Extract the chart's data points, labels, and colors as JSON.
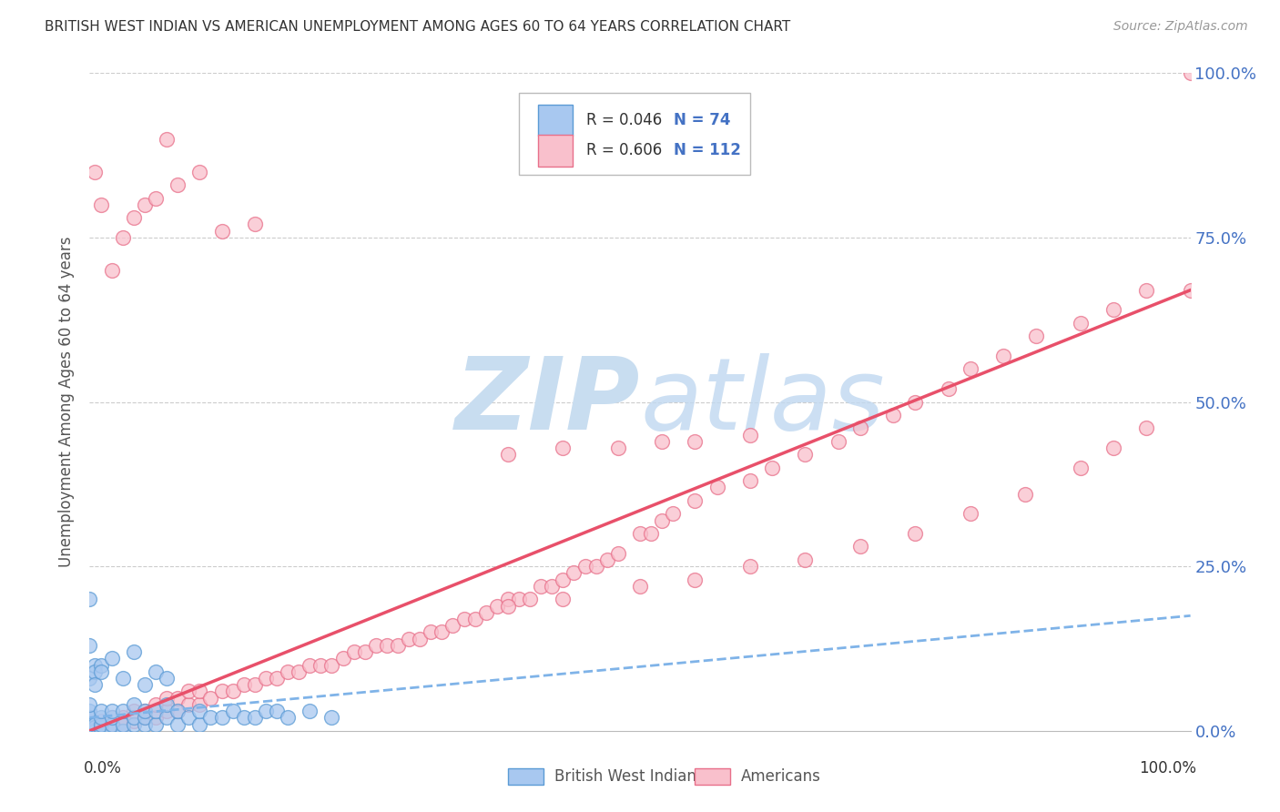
{
  "title": "BRITISH WEST INDIAN VS AMERICAN UNEMPLOYMENT AMONG AGES 60 TO 64 YEARS CORRELATION CHART",
  "source": "Source: ZipAtlas.com",
  "ylabel": "Unemployment Among Ages 60 to 64 years",
  "ylabel_right_ticks": [
    "0.0%",
    "25.0%",
    "50.0%",
    "75.0%",
    "100.0%"
  ],
  "ylabel_right_vals": [
    0.0,
    0.25,
    0.5,
    0.75,
    1.0
  ],
  "legend_label1": "British West Indians",
  "legend_label2": "Americans",
  "legend_R1": "R = 0.046",
  "legend_N1": "N = 74",
  "legend_R2": "R = 0.606",
  "legend_N2": "N = 112",
  "color_blue_fill": "#A8C8F0",
  "color_blue_edge": "#5B9BD5",
  "color_pink_fill": "#F9C0CC",
  "color_pink_edge": "#E8708A",
  "color_trendline_blue": "#7FB3E8",
  "color_trendline_pink": "#E8506A",
  "color_title": "#333333",
  "color_source": "#999999",
  "color_right_axis": "#4472C4",
  "color_grid": "#CCCCCC",
  "watermark_color": "#C8DDF0",
  "background_color": "#FFFFFF",
  "xlim": [
    0.0,
    1.0
  ],
  "ylim": [
    0.0,
    1.0
  ],
  "trendline_pink_x0": 0.0,
  "trendline_pink_y0": 0.0,
  "trendline_pink_x1": 1.0,
  "trendline_pink_y1": 0.67,
  "trendline_blue_x0": 0.0,
  "trendline_blue_y0": 0.02,
  "trendline_blue_x1": 1.0,
  "trendline_blue_y1": 0.175,
  "amer_x": [
    0.005,
    0.01,
    0.01,
    0.02,
    0.02,
    0.03,
    0.03,
    0.04,
    0.04,
    0.05,
    0.05,
    0.06,
    0.06,
    0.07,
    0.07,
    0.08,
    0.08,
    0.09,
    0.09,
    0.1,
    0.1,
    0.11,
    0.12,
    0.13,
    0.14,
    0.15,
    0.16,
    0.17,
    0.18,
    0.19,
    0.2,
    0.21,
    0.22,
    0.23,
    0.24,
    0.25,
    0.26,
    0.27,
    0.28,
    0.29,
    0.3,
    0.31,
    0.32,
    0.33,
    0.34,
    0.35,
    0.36,
    0.37,
    0.38,
    0.39,
    0.4,
    0.41,
    0.42,
    0.43,
    0.44,
    0.45,
    0.46,
    0.47,
    0.48,
    0.5,
    0.51,
    0.52,
    0.53,
    0.55,
    0.57,
    0.6,
    0.62,
    0.65,
    0.68,
    0.7,
    0.73,
    0.75,
    0.78,
    0.8,
    0.83,
    0.86,
    0.9,
    0.93,
    0.96,
    1.0,
    0.38,
    0.43,
    0.48,
    0.52,
    0.55,
    0.6,
    0.38,
    0.43,
    0.5,
    0.55,
    0.6,
    0.65,
    0.7,
    0.75,
    0.8,
    0.85,
    0.9,
    0.93,
    0.96,
    1.0,
    0.005,
    0.01,
    0.02,
    0.03,
    0.04,
    0.05,
    0.06,
    0.07,
    0.08,
    0.1,
    0.12,
    0.15
  ],
  "amer_y": [
    0.005,
    0.008,
    0.015,
    0.01,
    0.02,
    0.01,
    0.02,
    0.015,
    0.03,
    0.02,
    0.03,
    0.02,
    0.04,
    0.03,
    0.05,
    0.03,
    0.05,
    0.04,
    0.06,
    0.04,
    0.06,
    0.05,
    0.06,
    0.06,
    0.07,
    0.07,
    0.08,
    0.08,
    0.09,
    0.09,
    0.1,
    0.1,
    0.1,
    0.11,
    0.12,
    0.12,
    0.13,
    0.13,
    0.13,
    0.14,
    0.14,
    0.15,
    0.15,
    0.16,
    0.17,
    0.17,
    0.18,
    0.19,
    0.2,
    0.2,
    0.2,
    0.22,
    0.22,
    0.23,
    0.24,
    0.25,
    0.25,
    0.26,
    0.27,
    0.3,
    0.3,
    0.32,
    0.33,
    0.35,
    0.37,
    0.38,
    0.4,
    0.42,
    0.44,
    0.46,
    0.48,
    0.5,
    0.52,
    0.55,
    0.57,
    0.6,
    0.62,
    0.64,
    0.67,
    0.67,
    0.42,
    0.43,
    0.43,
    0.44,
    0.44,
    0.45,
    0.19,
    0.2,
    0.22,
    0.23,
    0.25,
    0.26,
    0.28,
    0.3,
    0.33,
    0.36,
    0.4,
    0.43,
    0.46,
    1.0,
    0.85,
    0.8,
    0.7,
    0.75,
    0.78,
    0.8,
    0.81,
    0.9,
    0.83,
    0.85,
    0.76,
    0.77
  ],
  "bwi_x": [
    0.0,
    0.0,
    0.0,
    0.0,
    0.0,
    0.0,
    0.0,
    0.0,
    0.0,
    0.0,
    0.0,
    0.0,
    0.0,
    0.0,
    0.0,
    0.0,
    0.0,
    0.0,
    0.0,
    0.0,
    0.005,
    0.005,
    0.005,
    0.01,
    0.01,
    0.01,
    0.01,
    0.01,
    0.02,
    0.02,
    0.02,
    0.02,
    0.03,
    0.03,
    0.03,
    0.04,
    0.04,
    0.04,
    0.05,
    0.05,
    0.05,
    0.06,
    0.06,
    0.07,
    0.07,
    0.08,
    0.08,
    0.09,
    0.1,
    0.1,
    0.11,
    0.12,
    0.13,
    0.14,
    0.15,
    0.16,
    0.17,
    0.18,
    0.2,
    0.22,
    0.0,
    0.0,
    0.0,
    0.005,
    0.005,
    0.005,
    0.01,
    0.01,
    0.02,
    0.03,
    0.04,
    0.05,
    0.06,
    0.07
  ],
  "bwi_y": [
    0.0,
    0.0,
    0.0,
    0.0,
    0.0,
    0.0,
    0.0,
    0.0,
    0.0,
    0.005,
    0.005,
    0.005,
    0.01,
    0.01,
    0.01,
    0.01,
    0.02,
    0.02,
    0.03,
    0.04,
    0.0,
    0.005,
    0.01,
    0.0,
    0.005,
    0.01,
    0.02,
    0.03,
    0.0,
    0.01,
    0.02,
    0.03,
    0.0,
    0.01,
    0.03,
    0.01,
    0.02,
    0.04,
    0.01,
    0.02,
    0.03,
    0.01,
    0.03,
    0.02,
    0.04,
    0.01,
    0.03,
    0.02,
    0.01,
    0.03,
    0.02,
    0.02,
    0.03,
    0.02,
    0.02,
    0.03,
    0.03,
    0.02,
    0.03,
    0.02,
    0.2,
    0.13,
    0.08,
    0.1,
    0.09,
    0.07,
    0.1,
    0.09,
    0.11,
    0.08,
    0.12,
    0.07,
    0.09,
    0.08
  ],
  "figsize": [
    14.06,
    8.92
  ],
  "dpi": 100
}
